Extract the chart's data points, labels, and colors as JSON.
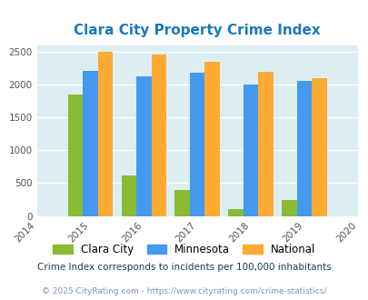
{
  "title": "Clara City Property Crime Index",
  "title_color": "#1a7abf",
  "years": [
    2015,
    2016,
    2017,
    2018,
    2019
  ],
  "clara_city": [
    1840,
    620,
    400,
    100,
    240
  ],
  "minnesota": [
    2210,
    2120,
    2180,
    2000,
    2060
  ],
  "national": [
    2490,
    2450,
    2350,
    2195,
    2090
  ],
  "clara_city_color": "#88bb33",
  "minnesota_color": "#4499ee",
  "national_color": "#ffaa33",
  "xlim": [
    2014,
    2020
  ],
  "ylim": [
    0,
    2600
  ],
  "yticks": [
    0,
    500,
    1000,
    1500,
    2000,
    2500
  ],
  "plot_bg": "#ddeef3",
  "legend_labels": [
    "Clara City",
    "Minnesota",
    "National"
  ],
  "footnote1": "Crime Index corresponds to incidents per 100,000 inhabitants",
  "footnote2": "© 2025 CityRating.com - https://www.cityrating.com/crime-statistics/",
  "bar_width": 0.28
}
